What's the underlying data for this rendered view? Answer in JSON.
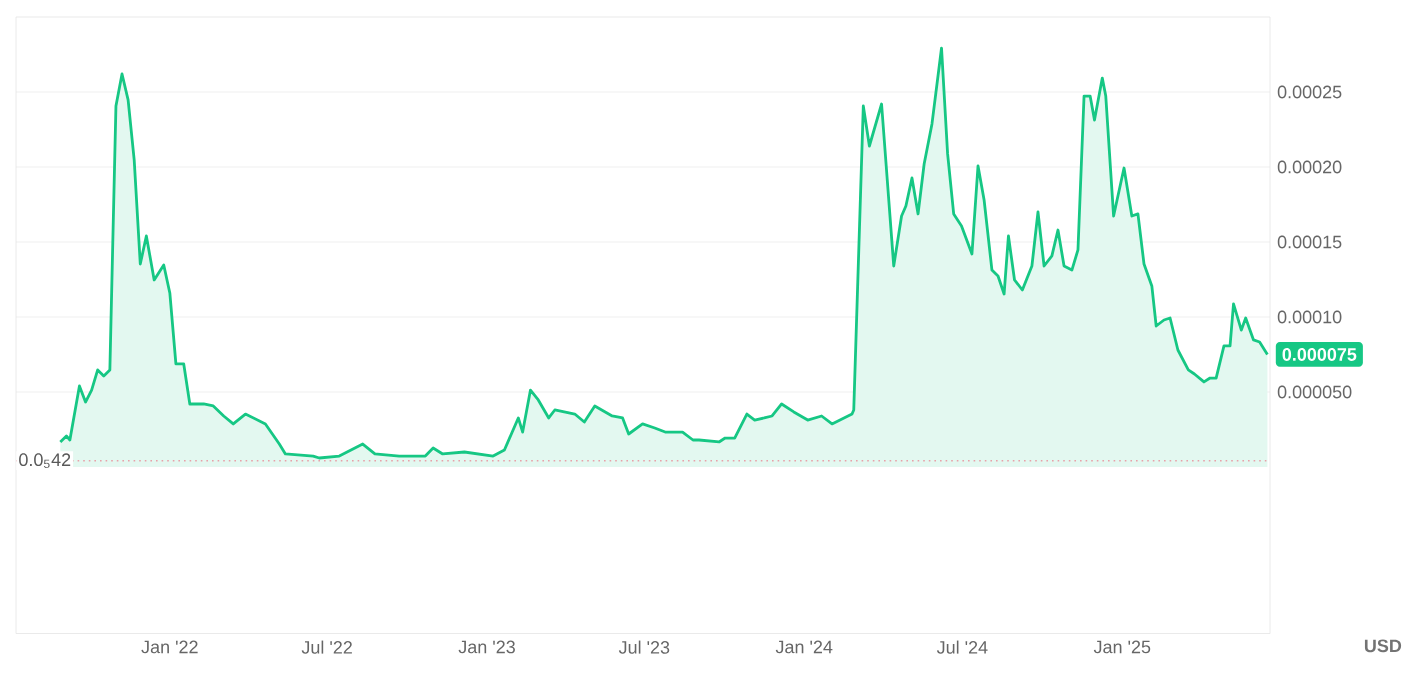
{
  "chart_data": {
    "type": "area",
    "ylabel": "USD",
    "grid": "y",
    "marker": "none",
    "line_style": "solid",
    "xlim": [
      "2021-07-08",
      "2025-06-20"
    ],
    "ylim": [
      -0.000111,
      0.0003
    ],
    "xticks": [
      {
        "value": "2022-01-01",
        "label": "Jan '22"
      },
      {
        "value": "2022-07-01",
        "label": "Jul '22"
      },
      {
        "value": "2023-01-01",
        "label": "Jan '23"
      },
      {
        "value": "2023-07-01",
        "label": "Jul '23"
      },
      {
        "value": "2024-01-01",
        "label": "Jan '24"
      },
      {
        "value": "2024-07-01",
        "label": "Jul '24"
      },
      {
        "value": "2025-01-01",
        "label": "Jan '25"
      }
    ],
    "yticks": [
      {
        "value": 5e-05,
        "label": "0.000050"
      },
      {
        "value": 0.0001,
        "label": "0.00010"
      },
      {
        "value": 0.00015,
        "label": "0.00015"
      },
      {
        "value": 0.0002,
        "label": "0.00020"
      },
      {
        "value": 0.00025,
        "label": "0.00025"
      }
    ],
    "ref_lines": [
      {
        "axis": "y",
        "value": 4.2e-06,
        "label": "0.0$_{5}$42",
        "color": "#e8a0a8",
        "line_style": "dotted"
      }
    ],
    "annotations": [
      {
        "text": "0.000075",
        "x": "2025-06-17",
        "y": 7.5e-05
      }
    ],
    "x": [
      "2021-08-28",
      "2021-09-04",
      "2021-09-08",
      "2021-09-19",
      "2021-09-26",
      "2021-10-03",
      "2021-10-10",
      "2021-10-17",
      "2021-10-24",
      "2021-10-31",
      "2021-11-07",
      "2021-11-14",
      "2021-11-21",
      "2021-11-28",
      "2021-12-05",
      "2021-12-14",
      "2021-12-25",
      "2022-01-01",
      "2022-01-08",
      "2022-01-17",
      "2022-01-24",
      "2022-02-09",
      "2022-02-20",
      "2022-03-04",
      "2022-03-15",
      "2022-03-29",
      "2022-04-21",
      "2022-05-07",
      "2022-05-14",
      "2022-06-15",
      "2022-06-22",
      "2022-07-15",
      "2022-08-11",
      "2022-08-25",
      "2022-09-22",
      "2022-10-22",
      "2022-10-31",
      "2022-11-11",
      "2022-12-06",
      "2023-01-08",
      "2023-01-21",
      "2023-02-06",
      "2023-02-11",
      "2023-02-20",
      "2023-03-01",
      "2023-03-13",
      "2023-03-20",
      "2023-04-12",
      "2023-04-23",
      "2023-05-05",
      "2023-05-25",
      "2023-06-06",
      "2023-06-13",
      "2023-06-29",
      "2023-07-13",
      "2023-07-25",
      "2023-08-14",
      "2023-08-26",
      "2023-09-02",
      "2023-09-25",
      "2023-10-02",
      "2023-10-13",
      "2023-10-27",
      "2023-11-05",
      "2023-11-16",
      "2023-11-25",
      "2023-12-06",
      "2023-12-20",
      "2024-01-05",
      "2024-01-21",
      "2024-02-02",
      "2024-02-25",
      "2024-02-27",
      "2024-03-09",
      "2024-03-16",
      "2024-03-30",
      "2024-04-13",
      "2024-04-22",
      "2024-04-27",
      "2024-05-04",
      "2024-05-11",
      "2024-05-18",
      "2024-05-27",
      "2024-06-07",
      "2024-06-14",
      "2024-06-21",
      "2024-06-30",
      "2024-07-12",
      "2024-07-19",
      "2024-07-26",
      "2024-08-04",
      "2024-08-11",
      "2024-08-18",
      "2024-08-23",
      "2024-08-30",
      "2024-09-08",
      "2024-09-19",
      "2024-09-26",
      "2024-10-03",
      "2024-10-12",
      "2024-10-19",
      "2024-10-26",
      "2024-11-04",
      "2024-11-11",
      "2024-11-18",
      "2024-11-25",
      "2024-11-30",
      "2024-12-09",
      "2024-12-13",
      "2024-12-22",
      "2025-01-03",
      "2025-01-12",
      "2025-01-19",
      "2025-01-26",
      "2025-02-04",
      "2025-02-09",
      "2025-02-18",
      "2025-02-25",
      "2025-03-06",
      "2025-03-18",
      "2025-03-25",
      "2025-04-05",
      "2025-04-12",
      "2025-04-19",
      "2025-04-28",
      "2025-05-05",
      "2025-05-09",
      "2025-05-18",
      "2025-05-23",
      "2025-06-01",
      "2025-06-08",
      "2025-06-17"
    ],
    "series": [
      {
        "color": "#16c784",
        "values": [
          1.67e-05,
          2.07e-05,
          1.8e-05,
          5.4e-05,
          4.33e-05,
          5.13e-05,
          6.47e-05,
          6.07e-05,
          6.47e-05,
          0.0002407,
          0.000262,
          0.0002447,
          0.0002047,
          0.0001353,
          0.000154,
          0.0001247,
          0.0001347,
          0.000116,
          6.87e-05,
          6.87e-05,
          4.2e-05,
          4.2e-05,
          4.07e-05,
          3.4e-05,
          2.87e-05,
          3.53e-05,
          2.87e-05,
          1.53e-05,
          8.7e-06,
          7.3e-06,
          6e-06,
          7.3e-06,
          1.53e-05,
          8.7e-06,
          7.3e-06,
          7.3e-06,
          1.27e-05,
          8.7e-06,
          1e-05,
          7.3e-06,
          1.13e-05,
          3.27e-05,
          2.33e-05,
          5.13e-05,
          4.47e-05,
          3.27e-05,
          3.8e-05,
          3.53e-05,
          3e-05,
          4.07e-05,
          3.4e-05,
          3.27e-05,
          2.2e-05,
          2.87e-05,
          2.6e-05,
          2.33e-05,
          2.33e-05,
          1.8e-05,
          1.8e-05,
          1.67e-05,
          1.93e-05,
          1.93e-05,
          3.53e-05,
          3.13e-05,
          3.27e-05,
          3.4e-05,
          4.2e-05,
          3.67e-05,
          3.13e-05,
          3.4e-05,
          2.87e-05,
          3.53e-05,
          3.8e-05,
          0.0002407,
          0.000214,
          0.000242,
          0.000134,
          0.0001673,
          0.000174,
          0.0001927,
          0.0001687,
          0.000202,
          0.0002287,
          0.0002793,
          0.0002087,
          0.0001687,
          0.0001607,
          0.000142,
          0.0002007,
          0.000178,
          0.0001313,
          0.0001273,
          0.0001153,
          0.000154,
          0.0001247,
          0.000118,
          0.000134,
          0.00017,
          0.000134,
          0.0001407,
          0.000158,
          0.000134,
          0.0001313,
          0.0001447,
          0.0002473,
          0.0002473,
          0.0002313,
          0.0002593,
          0.0002473,
          0.0001673,
          0.0001993,
          0.0001673,
          0.0001687,
          0.0001353,
          0.0001207,
          9.4e-05,
          9.8e-05,
          9.93e-05,
          7.8e-05,
          6.47e-05,
          6.2e-05,
          5.67e-05,
          5.93e-05,
          5.93e-05,
          8.07e-05,
          8.07e-05,
          0.0001087,
          9.13e-05,
          9.93e-05,
          8.47e-05,
          8.33e-05,
          7.5e-05
        ]
      }
    ]
  }
}
